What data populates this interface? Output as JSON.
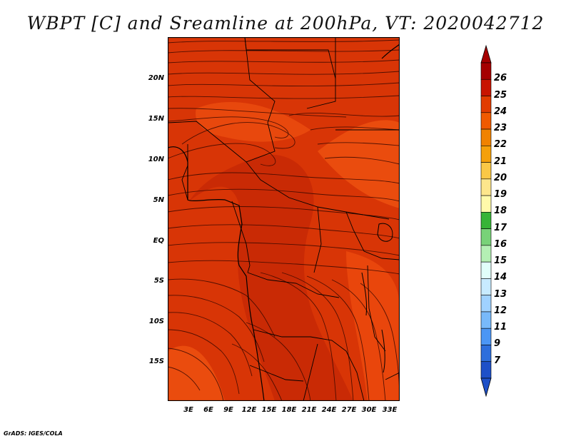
{
  "title": "WBPT [C] and Sreamline at 200hPa, VT: 2020042712",
  "credit": "GrADS: IGES/COLA",
  "map": {
    "lat_labels": [
      "20N",
      "15N",
      "10N",
      "5N",
      "EQ",
      "5S",
      "10S",
      "15S"
    ],
    "lon_labels": [
      "3E",
      "6E",
      "9E",
      "12E",
      "15E",
      "18E",
      "21E",
      "24E",
      "27E",
      "30E",
      "33E"
    ],
    "fill_colors": {
      "dark": "#cc2d06",
      "mid": "#dd3c08",
      "light": "#ee5512"
    }
  },
  "colorbar": {
    "levels": [
      "26",
      "25",
      "24",
      "23",
      "22",
      "21",
      "20",
      "19",
      "18",
      "17",
      "16",
      "15",
      "14",
      "13",
      "12",
      "11",
      "9",
      "7"
    ],
    "colors": [
      "#a50000",
      "#c81400",
      "#e13c00",
      "#f05a00",
      "#f08200",
      "#f5a00a",
      "#fac846",
      "#fde68c",
      "#fffaaa",
      "#37b437",
      "#78d278",
      "#b4f0b4",
      "#e1fffa",
      "#c8ebff",
      "#a0d2ff",
      "#78b9fa",
      "#4b96f5",
      "#2d6edc",
      "#1e50c8"
    ]
  }
}
